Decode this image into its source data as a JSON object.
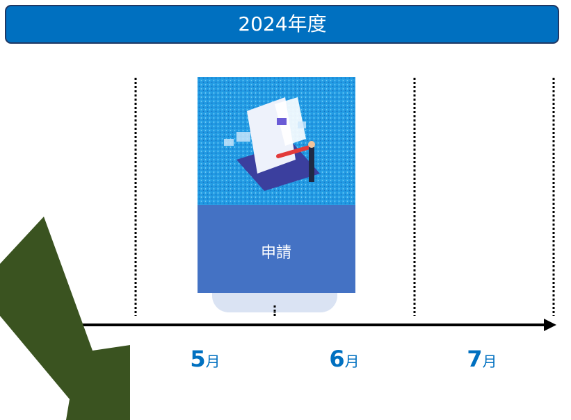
{
  "header": {
    "title": "2024年度"
  },
  "step": {
    "label": "申請"
  },
  "months": [
    {
      "number": "5",
      "unit": "月"
    },
    {
      "number": "6",
      "unit": "月"
    },
    {
      "number": "7",
      "unit": "月"
    }
  ]
}
